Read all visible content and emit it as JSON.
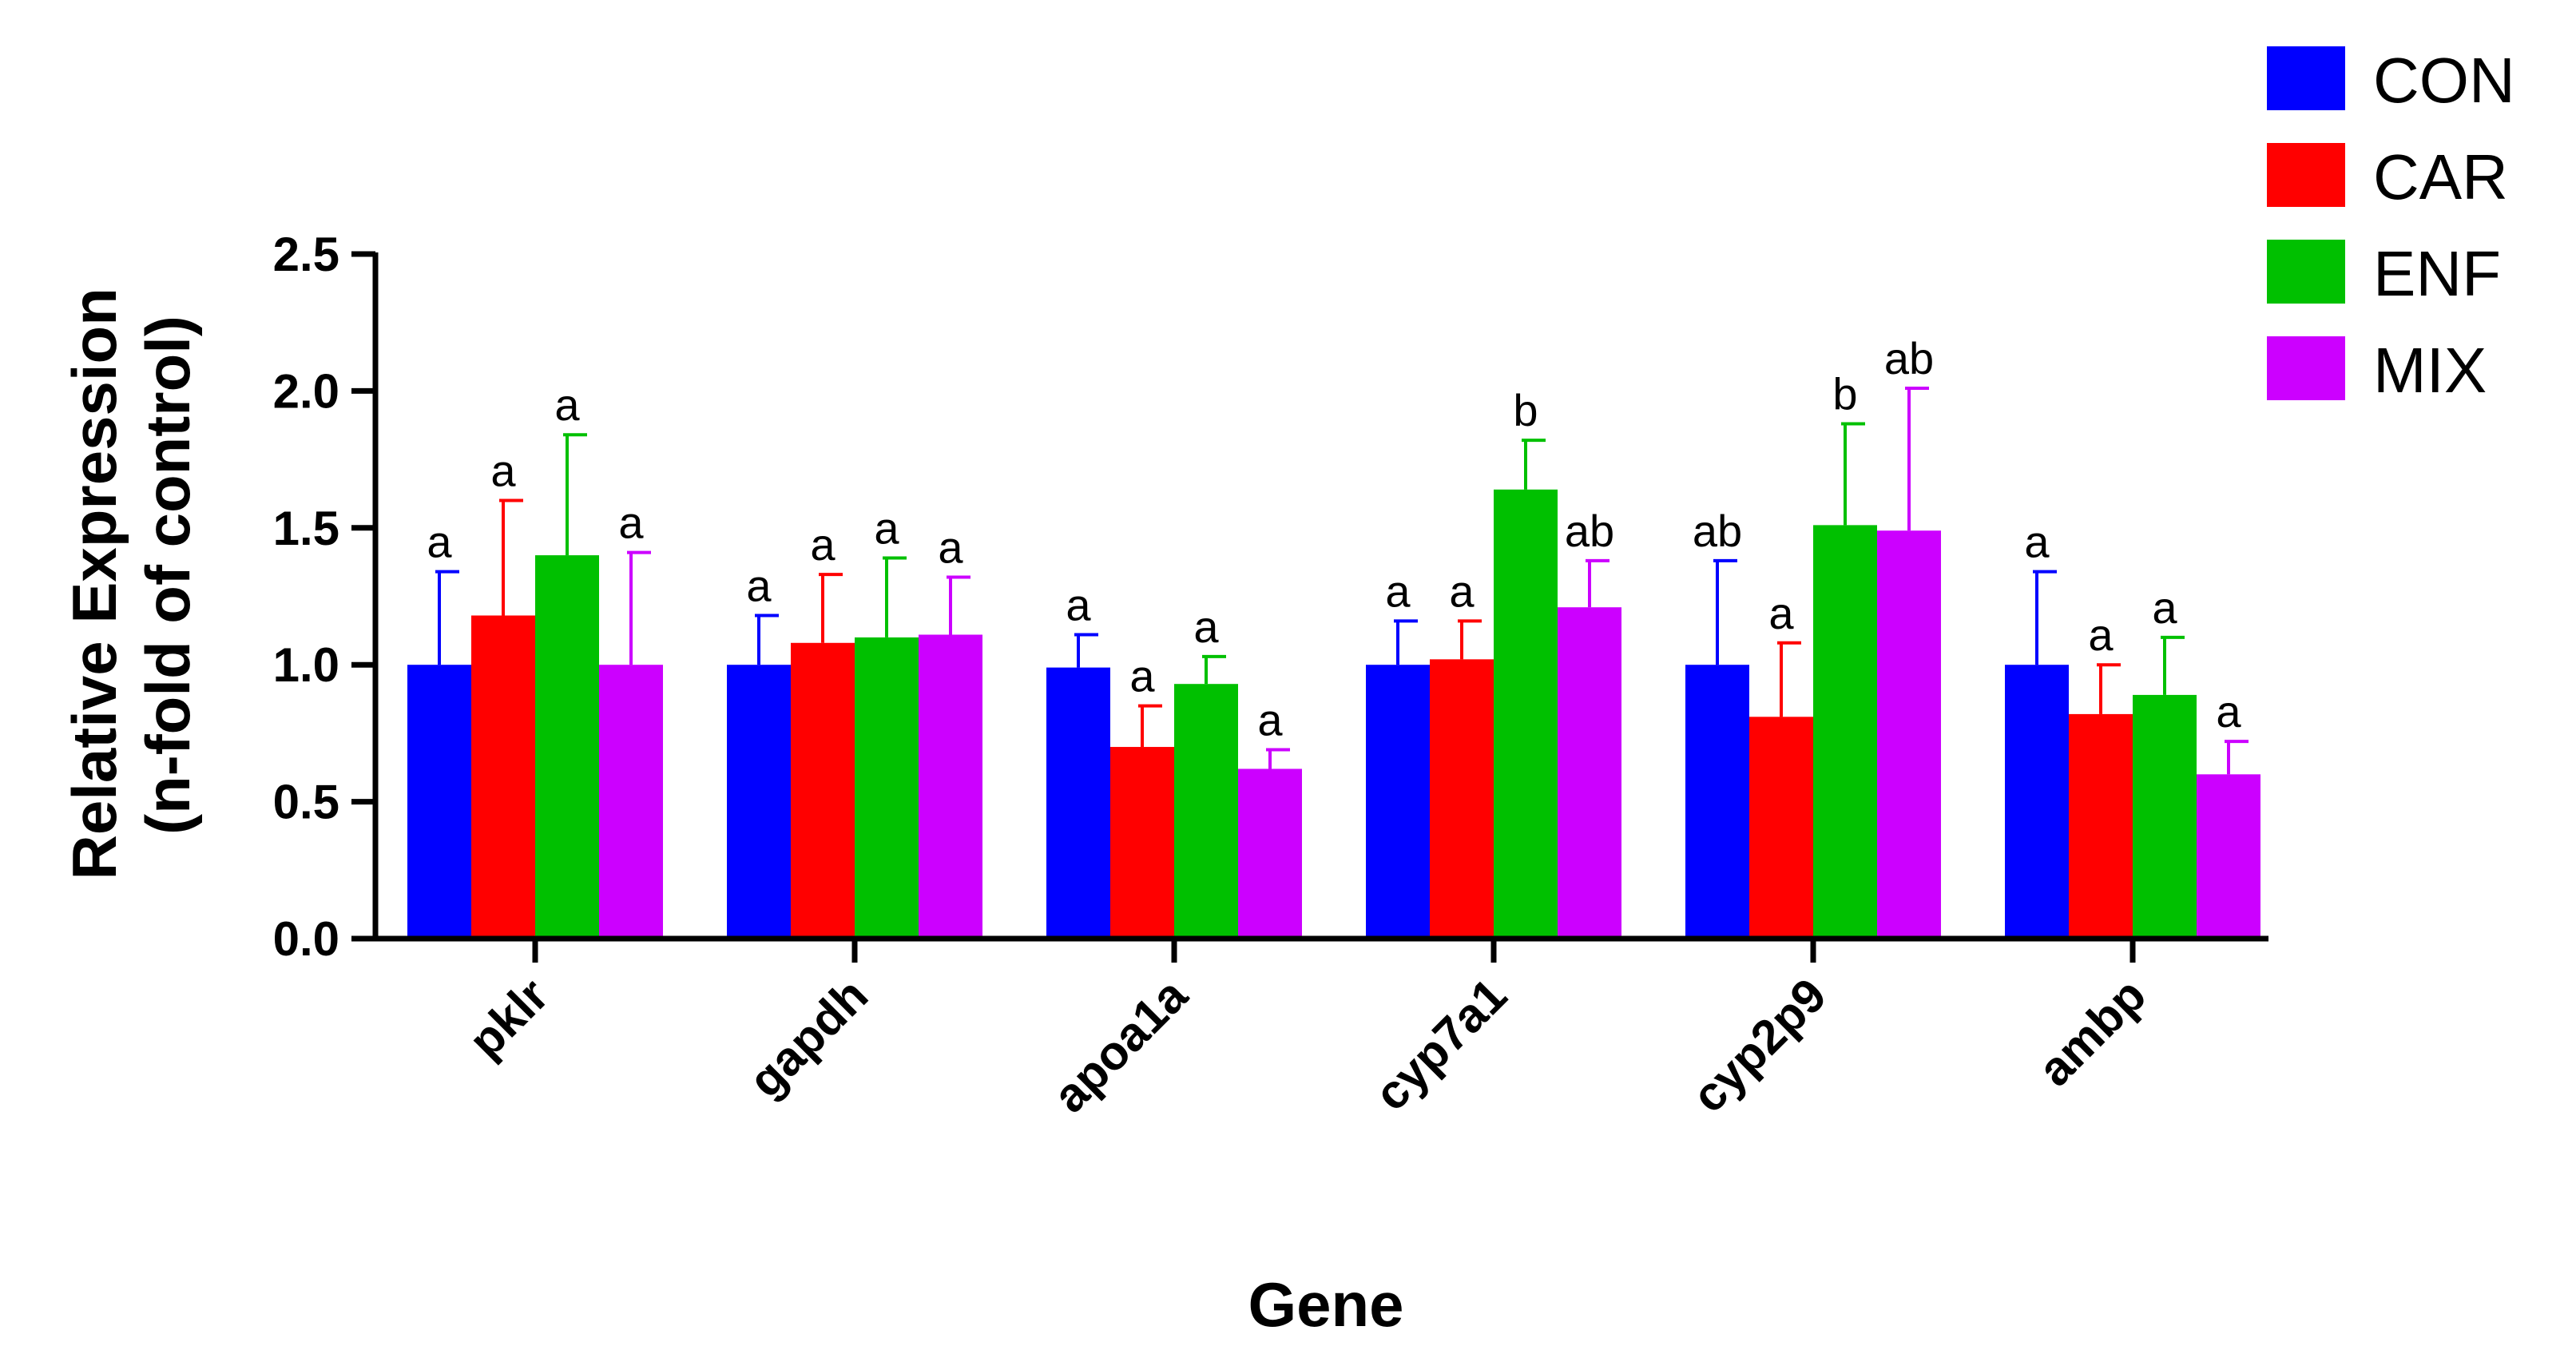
{
  "chart_data": {
    "type": "bar",
    "title": "",
    "xlabel": "Gene",
    "ylabel": [
      "Relative Expression",
      "(n-fold of control)"
    ],
    "ylim": [
      0,
      2.5
    ],
    "yticks": [
      "0.0",
      "0.5",
      "1.0",
      "1.5",
      "2.0",
      "2.5"
    ],
    "ytick_values": [
      0,
      0.5,
      1.0,
      1.5,
      2.0,
      2.5
    ],
    "categories": [
      "pklr",
      "gapdh",
      "apoa1a",
      "cyp7a1",
      "cyp2p9",
      "ambp"
    ],
    "legend_position": "top-right",
    "series": [
      {
        "name": "CON",
        "color": "#0000ff",
        "values": [
          1.0,
          1.0,
          0.99,
          1.0,
          1.0,
          1.0
        ],
        "errors": [
          0.34,
          0.18,
          0.12,
          0.16,
          0.38,
          0.34
        ],
        "labels": [
          "a",
          "a",
          "a",
          "a",
          "ab",
          "a"
        ]
      },
      {
        "name": "CAR",
        "color": "#ff0000",
        "values": [
          1.18,
          1.08,
          0.7,
          1.02,
          0.81,
          0.82
        ],
        "errors": [
          0.42,
          0.25,
          0.15,
          0.14,
          0.27,
          0.18
        ],
        "labels": [
          "a",
          "a",
          "a",
          "a",
          "a",
          "a"
        ]
      },
      {
        "name": "ENF",
        "color": "#00c000",
        "values": [
          1.4,
          1.1,
          0.93,
          1.64,
          1.51,
          0.89
        ],
        "errors": [
          0.44,
          0.29,
          0.1,
          0.18,
          0.37,
          0.21
        ],
        "labels": [
          "a",
          "a",
          "a",
          "b",
          "b",
          "a"
        ]
      },
      {
        "name": "MIX",
        "color": "#cc00ff",
        "values": [
          1.0,
          1.11,
          0.62,
          1.21,
          1.49,
          0.6
        ],
        "errors": [
          0.41,
          0.21,
          0.07,
          0.17,
          0.52,
          0.12
        ],
        "labels": [
          "a",
          "a",
          "a",
          "ab",
          "ab",
          "a"
        ]
      }
    ]
  }
}
